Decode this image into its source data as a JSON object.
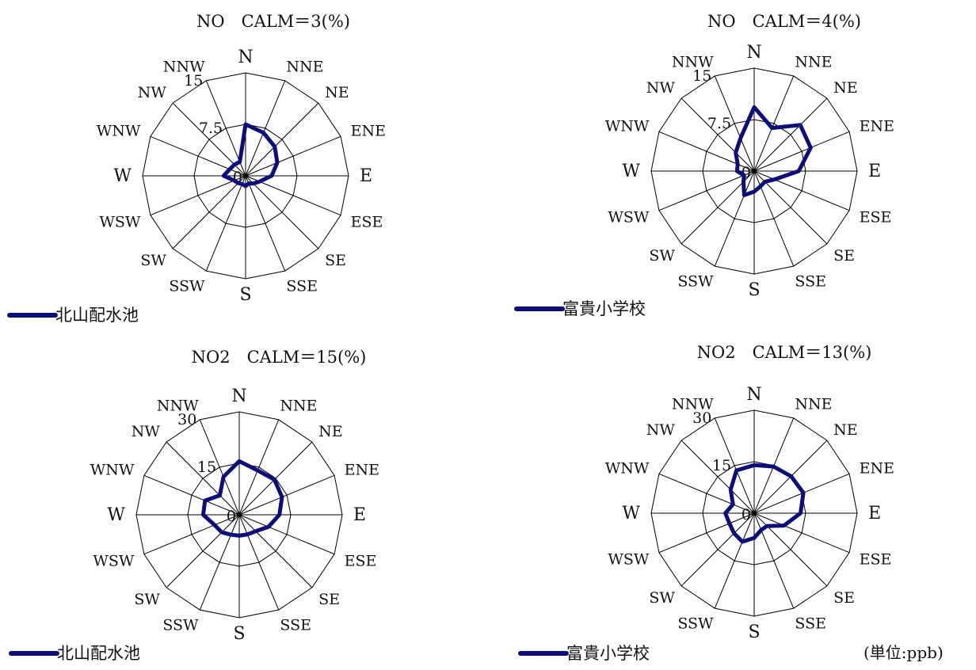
{
  "unit_note": "(単位:ppb)",
  "directions": [
    "N",
    "NNE",
    "NE",
    "ENE",
    "E",
    "ESE",
    "SE",
    "SSE",
    "S",
    "SSW",
    "SW",
    "WSW",
    "W",
    "WNW",
    "NW",
    "NNW"
  ],
  "series_color": "#0d0d7a",
  "chart_data": [
    {
      "type": "radar",
      "title": "NO　CALM＝3(%)",
      "legend": "北山配水池",
      "rmax": 15,
      "ticks": [
        "15",
        "7.5",
        "0"
      ],
      "values": [
        7.5,
        6.8,
        6.0,
        5.0,
        3.8,
        2.2,
        1.6,
        1.2,
        1.5,
        1.3,
        1.5,
        1.8,
        3.2,
        2.5,
        2.3,
        2.2
      ]
    },
    {
      "type": "radar",
      "title": "NO　CALM＝4(%)",
      "legend": "富貴小学校",
      "rmax": 15,
      "ticks": [
        "15",
        "7.5",
        "0"
      ],
      "values": [
        9.3,
        6.8,
        9.5,
        8.9,
        6.5,
        3.2,
        2.2,
        2.4,
        3.0,
        3.8,
        2.2,
        1.6,
        2.5,
        2.6,
        3.8,
        5.2
      ]
    },
    {
      "type": "radar",
      "title": "NO2　CALM＝15(%)",
      "legend": "北山配水池",
      "rmax": 30,
      "ticks": [
        "30",
        "15",
        "0"
      ],
      "values": [
        15.6,
        14.0,
        14.5,
        13.5,
        11.7,
        9.2,
        6.8,
        6.2,
        6.1,
        6.3,
        7.2,
        7.8,
        10.5,
        10.8,
        8.0,
        12.0
      ]
    },
    {
      "type": "radar",
      "title": "NO2　CALM＝13(%)",
      "legend": "富貴小学校",
      "rmax": 30,
      "ticks": [
        "30",
        "15",
        "0"
      ],
      "values": [
        14.0,
        14.7,
        15.2,
        15.5,
        13.5,
        9.4,
        5.3,
        5.3,
        7.2,
        9.0,
        8.3,
        7.8,
        8.4,
        6.7,
        9.7,
        13.5
      ]
    }
  ]
}
